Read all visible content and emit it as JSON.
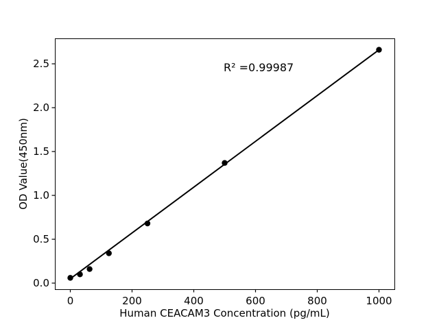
{
  "figure": {
    "background_color": "#ffffff",
    "foreground_color": "#000000"
  },
  "chart_data": {
    "type": "scatter",
    "title": "",
    "xlabel": "Human CEACAM3 Concentration (pg/mL)",
    "ylabel": "OD Value(450nm)",
    "annotation": {
      "text": "R² =0.99987",
      "r_squared": 0.99987
    },
    "x": [
      0,
      31.25,
      62.5,
      125,
      250,
      500,
      1000
    ],
    "y": [
      0.06,
      0.1,
      0.16,
      0.34,
      0.68,
      1.37,
      2.66
    ],
    "fit_line": {
      "x": [
        0,
        1000
      ],
      "y": [
        0.05,
        2.66
      ]
    },
    "xticks": {
      "values": [
        0,
        200,
        400,
        600,
        800,
        1000
      ],
      "labels": [
        "0",
        "200",
        "400",
        "600",
        "800",
        "1000"
      ]
    },
    "yticks": {
      "values": [
        0.0,
        0.5,
        1.0,
        1.5,
        2.0,
        2.5
      ],
      "labels": [
        "0.0",
        "0.5",
        "1.0",
        "1.5",
        "2.0",
        "2.5"
      ]
    },
    "xlim": [
      -50,
      1050
    ],
    "ylim": [
      -0.07,
      2.79
    ],
    "grid": false,
    "legend": null,
    "line_color": "#000000",
    "marker_color": "#000000",
    "marker_shape": "circle"
  }
}
